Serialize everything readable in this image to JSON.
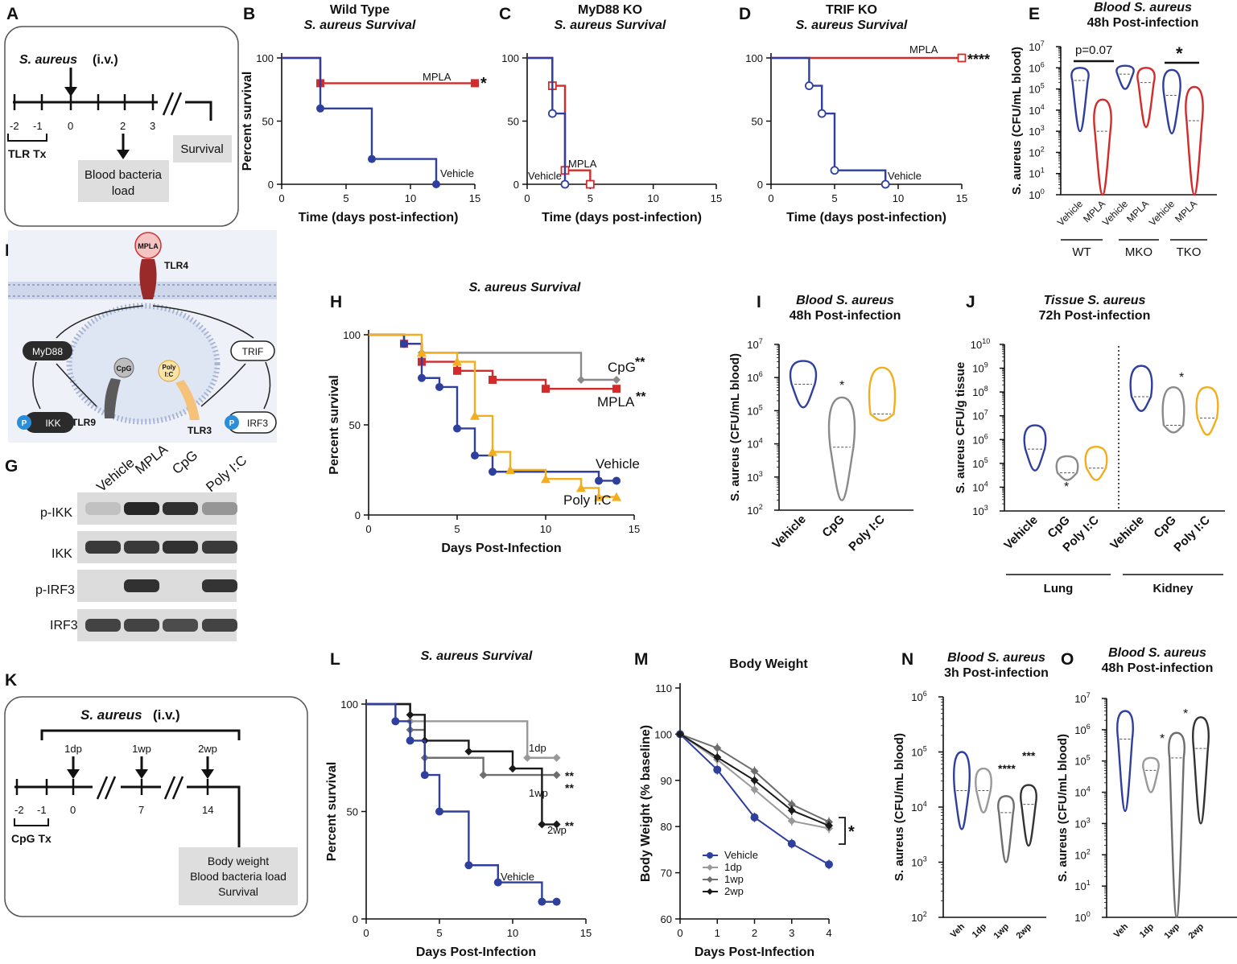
{
  "panels": {
    "A": {
      "label": "A",
      "pathogen": "S. aureus",
      "route": "(i.v.)",
      "days": [
        "-2",
        "-1",
        "0",
        "2",
        "3"
      ],
      "tx": "TLR Tx",
      "box_blood": [
        "Blood bacteria",
        "load"
      ],
      "box_survival": "Survival"
    },
    "F": {
      "label": "F",
      "nodes": {
        "mpla": "MPLA",
        "tlr4": "TLR4",
        "myd88": "MyD88",
        "trif": "TRIF",
        "cpg": "CpG",
        "polyic": [
          "Poly",
          "I:C"
        ],
        "tlr9": "TLR9",
        "tlr3": "TLR3",
        "ikk": "IKK",
        "irf3": "IRF3",
        "p": "P"
      }
    },
    "G": {
      "label": "G",
      "lanes": [
        "Vehicle",
        "MPLA",
        "CpG",
        "Poly I:C"
      ],
      "rows": [
        "p-IKK",
        "IKK",
        "p-IRF3",
        "IRF3"
      ],
      "intensity": [
        [
          0.12,
          0.95,
          0.9,
          0.35
        ],
        [
          0.85,
          0.85,
          0.9,
          0.85
        ],
        [
          0,
          0.9,
          0,
          0.88
        ],
        [
          0.8,
          0.8,
          0.75,
          0.8
        ]
      ]
    },
    "K": {
      "label": "K",
      "pathogen": "S. aureus",
      "route": "(i.v.)",
      "groups": [
        "1dp",
        "1wp",
        "2wp"
      ],
      "days": [
        "-2",
        "-1",
        "0",
        "7",
        "14"
      ],
      "tx": "CpG Tx",
      "box": [
        "Body weight",
        "Blood bacteria load",
        "Survival"
      ]
    }
  },
  "colors": {
    "vehicle": "#2e3f9e",
    "mpla": "#d42a2a",
    "cpg": "#8a8a8a",
    "polyic": "#f2ae1c",
    "dp1": "#999999",
    "wp1": "#6e6e6e",
    "wp2": "#1a1a1a"
  },
  "chart_data": [
    {
      "id": "B",
      "label": "B",
      "type": "line",
      "title": [
        "Wild Type",
        "S. aureus Survival"
      ],
      "xlabel": "Time (days post-infection)",
      "ylabel": "Percent survival",
      "xlim": [
        0,
        15
      ],
      "ylim": [
        0,
        100
      ],
      "xticks": [
        0,
        5,
        10,
        15
      ],
      "yticks": [
        0,
        50,
        100
      ],
      "series": [
        {
          "name": "MPLA",
          "color": "#d42a2a",
          "steps": [
            [
              0,
              100
            ],
            [
              3,
              80
            ],
            [
              15,
              80
            ]
          ],
          "marker": "square",
          "sig": "*"
        },
        {
          "name": "Vehicle",
          "color": "#2e3f9e",
          "steps": [
            [
              0,
              100
            ],
            [
              3,
              60
            ],
            [
              7,
              20
            ],
            [
              12,
              0
            ]
          ],
          "marker": "circle"
        }
      ]
    },
    {
      "id": "C",
      "label": "C",
      "type": "line",
      "title": [
        "MyD88 KO",
        "S. aureus Survival"
      ],
      "xlabel": "Time (days post-infection)",
      "xlim": [
        0,
        15
      ],
      "ylim": [
        0,
        100
      ],
      "xticks": [
        0,
        5,
        10,
        15
      ],
      "yticks": [
        0,
        50,
        100
      ],
      "series": [
        {
          "name": "MPLA",
          "color": "#d42a2a",
          "steps": [
            [
              0,
              100
            ],
            [
              2,
              78
            ],
            [
              3,
              11
            ],
            [
              5,
              0
            ]
          ],
          "marker": "osquare"
        },
        {
          "name": "Vehicle",
          "color": "#2e3f9e",
          "steps": [
            [
              0,
              100
            ],
            [
              2,
              56
            ],
            [
              3,
              0
            ]
          ],
          "marker": "ocircle"
        }
      ]
    },
    {
      "id": "D",
      "label": "D",
      "type": "line",
      "title": [
        "TRIF KO",
        "S. aureus Survival"
      ],
      "xlabel": "Time (days post-infection)",
      "xlim": [
        0,
        15
      ],
      "ylim": [
        0,
        100
      ],
      "xticks": [
        0,
        5,
        10,
        15
      ],
      "yticks": [
        0,
        50,
        100
      ],
      "series": [
        {
          "name": "MPLA",
          "color": "#d42a2a",
          "steps": [
            [
              0,
              100
            ],
            [
              15,
              100
            ]
          ],
          "marker": "osquare",
          "sig": "****"
        },
        {
          "name": "Vehicle",
          "color": "#2e3f9e",
          "steps": [
            [
              0,
              100
            ],
            [
              3,
              78
            ],
            [
              4,
              56
            ],
            [
              5,
              11
            ],
            [
              9,
              0
            ]
          ],
          "marker": "ocircle"
        }
      ]
    },
    {
      "id": "E",
      "label": "E",
      "type": "violin",
      "title": [
        "Blood S. aureus",
        "48h Post-infection"
      ],
      "ylabel": "S. aureus (CFU/mL blood)",
      "logmin": 0,
      "logmax": 7,
      "categories": [
        "Vehicle",
        "MPLA",
        "Vehicle",
        "MPLA",
        "Vehicle",
        "MPLA"
      ],
      "groups": [
        "WT",
        "MKO",
        "TKO"
      ],
      "series": [
        {
          "name": "WT Vehicle",
          "color": "#2e3f9e",
          "range": [
            3,
            6
          ],
          "median": 5.4
        },
        {
          "name": "WT MPLA",
          "color": "#d42a2a",
          "range": [
            0,
            4.5
          ],
          "median": 3
        },
        {
          "name": "MKO Vehicle",
          "color": "#2e3f9e",
          "range": [
            5,
            6.1
          ],
          "median": 5.7
        },
        {
          "name": "MKO MPLA",
          "color": "#d42a2a",
          "range": [
            3.2,
            6
          ],
          "median": 5.3
        },
        {
          "name": "TKO Vehicle",
          "color": "#2e3f9e",
          "range": [
            2.9,
            5.9
          ],
          "median": 4.7
        },
        {
          "name": "TKO MPLA",
          "color": "#d42a2a",
          "range": [
            0,
            5.1
          ],
          "median": 3.5
        }
      ],
      "annotations": [
        "p=0.07",
        "*"
      ]
    },
    {
      "id": "H",
      "label": "H",
      "type": "line",
      "title": [
        "S. aureus Survival"
      ],
      "xlabel": "Days Post-Infection",
      "ylabel": "Percent survival",
      "xlim": [
        0,
        15
      ],
      "ylim": [
        0,
        100
      ],
      "xticks": [
        0,
        5,
        10,
        15
      ],
      "yticks": [
        0,
        50,
        100
      ],
      "series": [
        {
          "name": "CpG",
          "color": "#8a8a8a",
          "steps": [
            [
              0,
              100
            ],
            [
              2,
              95
            ],
            [
              3,
              90
            ],
            [
              12,
              75
            ],
            [
              14,
              75
            ]
          ],
          "marker": "diamond",
          "sig": "**"
        },
        {
          "name": "MPLA",
          "color": "#d42a2a",
          "steps": [
            [
              0,
              100
            ],
            [
              2,
              95
            ],
            [
              3,
              85
            ],
            [
              5,
              80
            ],
            [
              7,
              75
            ],
            [
              10,
              70
            ],
            [
              14,
              70
            ]
          ],
          "marker": "square",
          "sig": "**"
        },
        {
          "name": "Vehicle",
          "color": "#2e3f9e",
          "steps": [
            [
              0,
              100
            ],
            [
              2,
              95
            ],
            [
              3,
              76
            ],
            [
              4,
              71
            ],
            [
              5,
              48
            ],
            [
              6,
              33
            ],
            [
              7,
              24
            ],
            [
              13,
              19
            ],
            [
              14,
              19
            ]
          ],
          "marker": "circle"
        },
        {
          "name": "Poly I:C",
          "color": "#f2ae1c",
          "steps": [
            [
              0,
              100
            ],
            [
              3,
              90
            ],
            [
              5,
              85
            ],
            [
              6,
              55
            ],
            [
              7,
              35
            ],
            [
              8,
              25
            ],
            [
              10,
              20
            ],
            [
              12,
              15
            ],
            [
              13,
              10
            ],
            [
              14,
              10
            ]
          ],
          "marker": "triangle"
        }
      ]
    },
    {
      "id": "I",
      "label": "I",
      "type": "violin",
      "title": [
        "Blood S. aureus",
        "48h Post-infection"
      ],
      "ylabel": "S. aureus (CFU/mL blood)",
      "logmin": 2,
      "logmax": 7,
      "categories": [
        "Vehicle",
        "CpG",
        "Poly I:C"
      ],
      "series": [
        {
          "name": "Vehicle",
          "color": "#2e3f9e",
          "range": [
            5.1,
            6.5
          ],
          "median": 5.8
        },
        {
          "name": "CpG",
          "color": "#8a8a8a",
          "range": [
            2.3,
            5.4
          ],
          "median": 3.9
        },
        {
          "name": "Poly I:C",
          "color": "#f2ae1c",
          "range": [
            4.7,
            6.3
          ],
          "median": 4.9
        }
      ],
      "annotations": [
        "*"
      ]
    },
    {
      "id": "J",
      "label": "J",
      "type": "violin",
      "title": [
        "Tissue S. aureus",
        "72h Post-infection"
      ],
      "ylabel": "S. aureus CFU/g tissue",
      "logmin": 3,
      "logmax": 10,
      "categories": [
        "Vehicle",
        "CpG",
        "Poly I:C",
        "Vehicle",
        "CpG",
        "Poly I:C"
      ],
      "groups": [
        "Lung",
        "Kidney"
      ],
      "series": [
        {
          "name": "Lung Vehicle",
          "color": "#2e3f9e",
          "range": [
            4.7,
            6.6
          ],
          "median": 5.6
        },
        {
          "name": "Lung CpG",
          "color": "#8a8a8a",
          "range": [
            4.3,
            5.3
          ],
          "median": 4.6
        },
        {
          "name": "Lung Poly I:C",
          "color": "#f2ae1c",
          "range": [
            4.3,
            5.7
          ],
          "median": 4.8
        },
        {
          "name": "Kidney Vehicle",
          "color": "#2e3f9e",
          "range": [
            7.2,
            9.1
          ],
          "median": 7.8
        },
        {
          "name": "Kidney CpG",
          "color": "#8a8a8a",
          "range": [
            6.3,
            8.2
          ],
          "median": 6.6
        },
        {
          "name": "Kidney Poly I:C",
          "color": "#f2ae1c",
          "range": [
            6.2,
            8.2
          ],
          "median": 6.9
        }
      ],
      "annotations": [
        "*",
        "*"
      ]
    },
    {
      "id": "L",
      "label": "L",
      "type": "line",
      "title": [
        "S. aureus Survival"
      ],
      "xlabel": "Days Post-Infection",
      "ylabel": "Percent survival",
      "xlim": [
        0,
        15
      ],
      "ylim": [
        0,
        100
      ],
      "xticks": [
        0,
        5,
        10,
        15
      ],
      "yticks": [
        0,
        50,
        100
      ],
      "series": [
        {
          "name": "1dp",
          "color": "#999999",
          "steps": [
            [
              0,
              100
            ],
            [
              3,
              92
            ],
            [
              11,
              75
            ],
            [
              13,
              75
            ]
          ],
          "marker": "diamond",
          "sig": "**"
        },
        {
          "name": "1wp",
          "color": "#6e6e6e",
          "steps": [
            [
              0,
              100
            ],
            [
              3,
              88
            ],
            [
              4,
              75
            ],
            [
              8,
              67
            ],
            [
              13,
              67
            ]
          ],
          "marker": "diamond",
          "sig": "**"
        },
        {
          "name": "2wp",
          "color": "#1a1a1a",
          "steps": [
            [
              0,
              100
            ],
            [
              3,
              95
            ],
            [
              4,
              83
            ],
            [
              7,
              78
            ],
            [
              10,
              70
            ],
            [
              12,
              44
            ],
            [
              13,
              44
            ]
          ],
          "marker": "diamond",
          "sig": "**"
        },
        {
          "name": "Vehicle",
          "color": "#2e3f9e",
          "steps": [
            [
              0,
              100
            ],
            [
              2,
              92
            ],
            [
              3,
              83
            ],
            [
              4,
              67
            ],
            [
              5,
              50
            ],
            [
              7,
              25
            ],
            [
              9,
              17
            ],
            [
              12,
              8
            ],
            [
              13,
              8
            ]
          ],
          "marker": "circle"
        }
      ]
    },
    {
      "id": "M",
      "label": "M",
      "type": "line",
      "title": [
        "Body Weight"
      ],
      "xlabel": "Days Post-Infection",
      "ylabel": "Body Weight (% baseline)",
      "xlim": [
        0,
        4
      ],
      "ylim": [
        60,
        110
      ],
      "xticks": [
        0,
        1,
        2,
        3,
        4
      ],
      "yticks": [
        60,
        70,
        80,
        90,
        100,
        110
      ],
      "x": [
        0,
        1,
        2,
        3,
        4
      ],
      "series": [
        {
          "name": "Vehicle",
          "color": "#2e3f9e",
          "values": [
            100,
            92.3,
            82,
            76.3,
            71.8
          ],
          "marker": "circle"
        },
        {
          "name": "1dp",
          "color": "#999999",
          "values": [
            100,
            94.5,
            88,
            81.2,
            79.6
          ],
          "marker": "diamond"
        },
        {
          "name": "1wp",
          "color": "#6e6e6e",
          "values": [
            100,
            97,
            92,
            84.8,
            81
          ],
          "marker": "diamond"
        },
        {
          "name": "2wp",
          "color": "#1a1a1a",
          "values": [
            100,
            95,
            90,
            83.5,
            80.2
          ],
          "marker": "diamond"
        }
      ],
      "annotations": [
        "*"
      ]
    },
    {
      "id": "N",
      "label": "N",
      "type": "violin",
      "title": [
        "Blood S. aureus",
        "3h Post-infection"
      ],
      "ylabel": "S. aureus (CFU/mL blood)",
      "logmin": 2,
      "logmax": 6,
      "categories": [
        "Veh",
        "1dp",
        "1wp",
        "2wp"
      ],
      "series": [
        {
          "name": "Veh",
          "color": "#2e3f9e",
          "range": [
            3.6,
            5
          ],
          "median": 4.3
        },
        {
          "name": "1dp",
          "color": "#999999",
          "range": [
            3.9,
            4.7
          ],
          "median": 4.3
        },
        {
          "name": "1wp",
          "color": "#6e6e6e",
          "range": [
            3,
            4.2
          ],
          "median": 3.9
        },
        {
          "name": "2wp",
          "color": "#333333",
          "range": [
            3.3,
            4.4
          ],
          "median": 4.05
        }
      ],
      "annotations": [
        "****",
        "***"
      ]
    },
    {
      "id": "O",
      "label": "O",
      "type": "violin",
      "title": [
        "Blood S. aureus",
        "48h Post-infection"
      ],
      "ylabel": "S. aureus (CFU/mL blood)",
      "logmin": 0,
      "logmax": 7,
      "categories": [
        "Veh",
        "1dp",
        "1wp",
        "2wp"
      ],
      "series": [
        {
          "name": "Veh",
          "color": "#2e3f9e",
          "range": [
            3.4,
            6.6
          ],
          "median": 5.7
        },
        {
          "name": "1dp",
          "color": "#999999",
          "range": [
            4,
            5.1
          ],
          "median": 4.7
        },
        {
          "name": "1wp",
          "color": "#6e6e6e",
          "range": [
            0,
            5.9
          ],
          "median": 5.1
        },
        {
          "name": "2wp",
          "color": "#333333",
          "range": [
            3,
            6.4
          ],
          "median": 5.4
        }
      ],
      "annotations": [
        "*",
        "*"
      ]
    }
  ]
}
